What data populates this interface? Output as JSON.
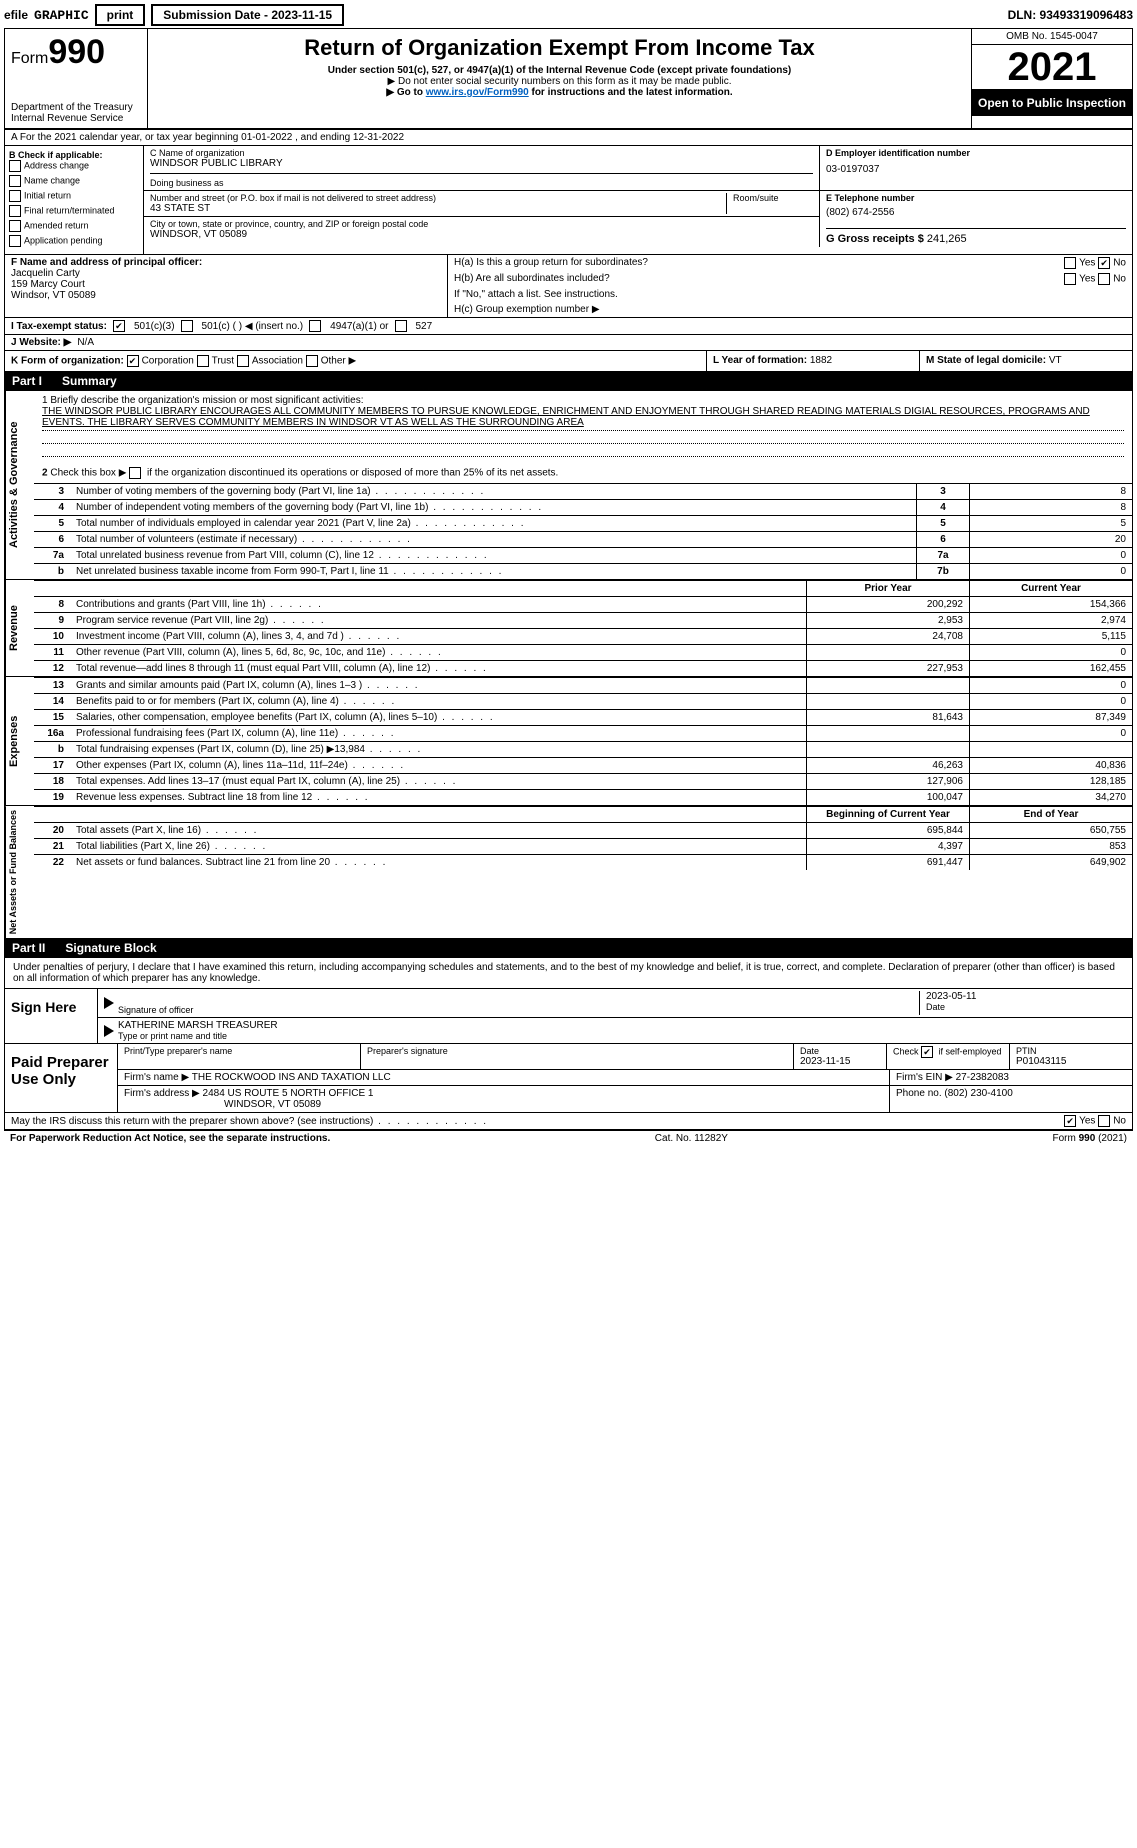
{
  "top": {
    "efile": "efile",
    "graphic": "GRAPHIC",
    "print": "print",
    "subdate_label": "Submission Date - 2023-11-15",
    "dln": "DLN: 93493319096483"
  },
  "header": {
    "form_label": "Form",
    "form_num": "990",
    "dept": "Department of the Treasury",
    "irs": "Internal Revenue Service",
    "title": "Return of Organization Exempt From Income Tax",
    "sub1": "Under section 501(c), 527, or 4947(a)(1) of the Internal Revenue Code (except private foundations)",
    "sub2": "▶ Do not enter social security numbers on this form as it may be made public.",
    "sub3_pre": "▶ Go to ",
    "sub3_link": "www.irs.gov/Form990",
    "sub3_post": " for instructions and the latest information.",
    "omb": "OMB No. 1545-0047",
    "year": "2021",
    "open": "Open to Public Inspection"
  },
  "rowA": {
    "text": "A For the 2021 calendar year, or tax year beginning 01-01-2022    , and ending 12-31-2022"
  },
  "colB": {
    "title": "B Check if applicable:",
    "opts": [
      "Address change",
      "Name change",
      "Initial return",
      "Final return/terminated",
      "Amended return",
      "Application pending"
    ]
  },
  "name": {
    "c_label": "C Name of organization",
    "org": "WINDSOR PUBLIC LIBRARY",
    "dba_label": "Doing business as",
    "street_label": "Number and street (or P.O. box if mail is not delivered to street address)",
    "room_label": "Room/suite",
    "street": "43 STATE ST",
    "city_label": "City or town, state or province, country, and ZIP or foreign postal code",
    "city": "WINDSOR, VT  05089",
    "d_label": "D Employer identification number",
    "ein": "03-0197037",
    "e_label": "E Telephone number",
    "phone": "(802) 674-2556",
    "g_label": "G Gross receipts $",
    "gross": "241,265"
  },
  "colF": {
    "label": "F Name and address of principal officer:",
    "name": "Jacquelin Carty",
    "addr1": "159 Marcy Court",
    "addr2": "Windsor, VT  05089"
  },
  "colH": {
    "ha": "H(a)  Is this a group return for subordinates?",
    "hb": "H(b)  Are all subordinates included?",
    "hb_note": "If \"No,\" attach a list. See instructions.",
    "hc": "H(c)  Group exemption number ▶",
    "yes": "Yes",
    "no": "No"
  },
  "rowI": {
    "label": "I  Tax-exempt status:",
    "o1": "501(c)(3)",
    "o2": "501(c) (   ) ◀ (insert no.)",
    "o3": "4947(a)(1) or",
    "o4": "527"
  },
  "rowJ": {
    "label": "J  Website: ▶",
    "val": "N/A"
  },
  "rowK": {
    "label": "K Form of organization:",
    "o1": "Corporation",
    "o2": "Trust",
    "o3": "Association",
    "o4": "Other ▶"
  },
  "rowL": {
    "label": "L Year of formation:",
    "val": "1882"
  },
  "rowM": {
    "label": "M State of legal domicile:",
    "val": "VT"
  },
  "part1": {
    "tag": "Part I",
    "title": "Summary"
  },
  "mission": {
    "q1": "1  Briefly describe the organization's mission or most significant activities:",
    "text": "THE WINDSOR PUBLIC LIBRARY ENCOURAGES ALL COMMUNITY MEMBERS TO PURSUE KNOWLEDGE, ENRICHMENT AND ENJOYMENT THROUGH SHARED READING MATERIALS DIGIAL RESOURCES, PROGRAMS AND EVENTS. THE LIBRARY SERVES COMMUNITY MEMBERS IN WINDSOR VT AS WELL AS THE SURROUNDING AREA",
    "q2": "2  Check this box ▶      if the organization discontinued its operations or disposed of more than 25% of its net assets."
  },
  "gov_lines": [
    {
      "n": "3",
      "d": "Number of voting members of the governing body (Part VI, line 1a)",
      "box": "3",
      "v": "8"
    },
    {
      "n": "4",
      "d": "Number of independent voting members of the governing body (Part VI, line 1b)",
      "box": "4",
      "v": "8"
    },
    {
      "n": "5",
      "d": "Total number of individuals employed in calendar year 2021 (Part V, line 2a)",
      "box": "5",
      "v": "5"
    },
    {
      "n": "6",
      "d": "Total number of volunteers (estimate if necessary)",
      "box": "6",
      "v": "20"
    },
    {
      "n": "7a",
      "d": "Total unrelated business revenue from Part VIII, column (C), line 12",
      "box": "7a",
      "v": "0"
    },
    {
      "n": "b",
      "d": "Net unrelated business taxable income from Form 990-T, Part I, line 11",
      "box": "7b",
      "v": "0"
    }
  ],
  "rev_header": {
    "prior": "Prior Year",
    "curr": "Current Year"
  },
  "revenue": [
    {
      "n": "8",
      "d": "Contributions and grants (Part VIII, line 1h)",
      "p": "200,292",
      "c": "154,366"
    },
    {
      "n": "9",
      "d": "Program service revenue (Part VIII, line 2g)",
      "p": "2,953",
      "c": "2,974"
    },
    {
      "n": "10",
      "d": "Investment income (Part VIII, column (A), lines 3, 4, and 7d )",
      "p": "24,708",
      "c": "5,115"
    },
    {
      "n": "11",
      "d": "Other revenue (Part VIII, column (A), lines 5, 6d, 8c, 9c, 10c, and 11e)",
      "p": "",
      "c": "0"
    },
    {
      "n": "12",
      "d": "Total revenue—add lines 8 through 11 (must equal Part VIII, column (A), line 12)",
      "p": "227,953",
      "c": "162,455"
    }
  ],
  "expenses": [
    {
      "n": "13",
      "d": "Grants and similar amounts paid (Part IX, column (A), lines 1–3 )",
      "p": "",
      "c": "0"
    },
    {
      "n": "14",
      "d": "Benefits paid to or for members (Part IX, column (A), line 4)",
      "p": "",
      "c": "0"
    },
    {
      "n": "15",
      "d": "Salaries, other compensation, employee benefits (Part IX, column (A), lines 5–10)",
      "p": "81,643",
      "c": "87,349"
    },
    {
      "n": "16a",
      "d": "Professional fundraising fees (Part IX, column (A), line 11e)",
      "p": "",
      "c": "0"
    },
    {
      "n": "b",
      "d": "Total fundraising expenses (Part IX, column (D), line 25) ▶13,984",
      "p": "SHADE",
      "c": "SHADE"
    },
    {
      "n": "17",
      "d": "Other expenses (Part IX, column (A), lines 11a–11d, 11f–24e)",
      "p": "46,263",
      "c": "40,836"
    },
    {
      "n": "18",
      "d": "Total expenses. Add lines 13–17 (must equal Part IX, column (A), line 25)",
      "p": "127,906",
      "c": "128,185"
    },
    {
      "n": "19",
      "d": "Revenue less expenses. Subtract line 18 from line 12",
      "p": "100,047",
      "c": "34,270"
    }
  ],
  "net_header": {
    "beg": "Beginning of Current Year",
    "end": "End of Year"
  },
  "net": [
    {
      "n": "20",
      "d": "Total assets (Part X, line 16)",
      "p": "695,844",
      "c": "650,755"
    },
    {
      "n": "21",
      "d": "Total liabilities (Part X, line 26)",
      "p": "4,397",
      "c": "853"
    },
    {
      "n": "22",
      "d": "Net assets or fund balances. Subtract line 21 from line 20",
      "p": "691,447",
      "c": "649,902"
    }
  ],
  "side_labels": {
    "gov": "Activities & Governance",
    "rev": "Revenue",
    "exp": "Expenses",
    "net": "Net Assets or Fund Balances"
  },
  "part2": {
    "tag": "Part II",
    "title": "Signature Block"
  },
  "sig": {
    "decl": "Under penalties of perjury, I declare that I have examined this return, including accompanying schedules and statements, and to the best of my knowledge and belief, it is true, correct, and complete. Declaration of preparer (other than officer) is based on all information of which preparer has any knowledge.",
    "sign_here": "Sign Here",
    "sig_off": "Signature of officer",
    "date": "Date",
    "date_val": "2023-05-11",
    "name": "KATHERINE MARSH  TREASURER",
    "name_label": "Type or print name and title"
  },
  "prep": {
    "label": "Paid Preparer Use Only",
    "h1": "Print/Type preparer's name",
    "h2": "Preparer's signature",
    "h3": "Date",
    "h3v": "2023-11-15",
    "h4": "Check       if self-employed",
    "h5": "PTIN",
    "ptin": "P01043115",
    "firm_label": "Firm's name    ▶",
    "firm": "THE ROCKWOOD INS AND TAXATION LLC",
    "ein_label": "Firm's EIN ▶",
    "ein": "27-2382083",
    "addr_label": "Firm's address ▶",
    "addr1": "2484 US ROUTE 5 NORTH OFFICE 1",
    "addr2": "WINDSOR, VT  05089",
    "phone_label": "Phone no.",
    "phone": "(802) 230-4100"
  },
  "footer": {
    "discuss": "May the IRS discuss this return with the preparer shown above? (see instructions)",
    "yes": "Yes",
    "no": "No",
    "pra": "For Paperwork Reduction Act Notice, see the separate instructions.",
    "cat": "Cat. No. 11282Y",
    "form": "Form 990 (2021)"
  }
}
